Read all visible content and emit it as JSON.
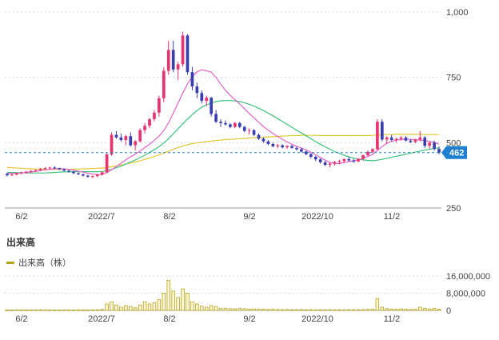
{
  "volume_section": {
    "title": "出来高",
    "legend_label": "出来高（株）",
    "legend_color": "#b6a41b"
  },
  "chart_data": [
    {
      "type": "candlestick",
      "title": "",
      "y_ticks": [
        "1,000",
        "750",
        "500",
        "250"
      ],
      "ylim": [
        250,
        1000
      ],
      "x_ticks": [
        "6/2",
        "2022/7",
        "8/2",
        "9/2",
        "2022/10",
        "11/2"
      ],
      "last_price_label": "462",
      "last_price": 462,
      "grid": true,
      "colors": {
        "up": "#e8336d",
        "down": "#3a3fb0",
        "ma_short": "#e064c8",
        "ma_mid": "#3cc47c",
        "ma_long": "#e6c832",
        "last_price": "#1f7fd1"
      },
      "candles": [
        [
          381,
          384,
          371,
          375
        ],
        [
          375,
          381,
          372,
          378
        ],
        [
          378,
          385,
          374,
          383
        ],
        [
          383,
          389,
          378,
          386
        ],
        [
          386,
          392,
          381,
          389
        ],
        [
          389,
          395,
          384,
          392
        ],
        [
          392,
          398,
          388,
          395
        ],
        [
          395,
          403,
          391,
          400
        ],
        [
          400,
          406,
          396,
          403
        ],
        [
          403,
          408,
          398,
          405
        ],
        [
          405,
          410,
          399,
          402
        ],
        [
          402,
          405,
          395,
          398
        ],
        [
          398,
          401,
          390,
          393
        ],
        [
          393,
          396,
          386,
          389
        ],
        [
          389,
          392,
          380,
          383
        ],
        [
          383,
          386,
          376,
          379
        ],
        [
          379,
          382,
          370,
          374
        ],
        [
          374,
          377,
          366,
          370
        ],
        [
          370,
          375,
          364,
          372
        ],
        [
          372,
          380,
          368,
          378
        ],
        [
          378,
          390,
          374,
          387
        ],
        [
          387,
          460,
          384,
          455
        ],
        [
          455,
          540,
          450,
          530
        ],
        [
          530,
          545,
          515,
          520
        ],
        [
          520,
          535,
          505,
          510
        ],
        [
          510,
          530,
          490,
          525
        ],
        [
          525,
          540,
          485,
          490
        ],
        [
          490,
          510,
          470,
          505
        ],
        [
          505,
          555,
          500,
          548
        ],
        [
          548,
          575,
          535,
          565
        ],
        [
          565,
          595,
          555,
          590
        ],
        [
          590,
          625,
          580,
          615
        ],
        [
          615,
          680,
          600,
          670
        ],
        [
          670,
          790,
          655,
          775
        ],
        [
          775,
          890,
          760,
          855
        ],
        [
          855,
          890,
          770,
          780
        ],
        [
          780,
          810,
          740,
          800
        ],
        [
          800,
          925,
          790,
          910
        ],
        [
          910,
          915,
          760,
          770
        ],
        [
          770,
          790,
          700,
          715
        ],
        [
          715,
          730,
          670,
          690
        ],
        [
          690,
          700,
          650,
          660
        ],
        [
          660,
          680,
          640,
          672
        ],
        [
          672,
          675,
          600,
          610
        ],
        [
          610,
          625,
          575,
          580
        ],
        [
          580,
          590,
          560,
          575
        ],
        [
          575,
          585,
          565,
          570
        ],
        [
          570,
          575,
          555,
          560
        ],
        [
          560,
          580,
          555,
          575
        ],
        [
          575,
          580,
          555,
          560
        ],
        [
          560,
          565,
          540,
          545
        ],
        [
          545,
          555,
          530,
          548
        ],
        [
          548,
          552,
          525,
          530
        ],
        [
          530,
          535,
          510,
          515
        ],
        [
          515,
          520,
          500,
          505
        ],
        [
          505,
          510,
          490,
          495
        ],
        [
          495,
          500,
          482,
          486
        ],
        [
          486,
          495,
          478,
          490
        ],
        [
          490,
          494,
          478,
          482
        ],
        [
          482,
          490,
          476,
          487
        ],
        [
          487,
          492,
          476,
          480
        ],
        [
          480,
          485,
          470,
          475
        ],
        [
          475,
          480,
          462,
          466
        ],
        [
          466,
          470,
          452,
          456
        ],
        [
          456,
          460,
          440,
          446
        ],
        [
          446,
          450,
          430,
          436
        ],
        [
          436,
          440,
          420,
          425
        ],
        [
          425,
          430,
          410,
          415
        ],
        [
          415,
          425,
          406,
          420
        ],
        [
          420,
          430,
          412,
          426
        ],
        [
          426,
          435,
          418,
          430
        ],
        [
          430,
          440,
          422,
          437
        ],
        [
          437,
          445,
          428,
          432
        ],
        [
          432,
          438,
          422,
          428
        ],
        [
          428,
          440,
          425,
          438
        ],
        [
          438,
          455,
          432,
          452
        ],
        [
          452,
          470,
          448,
          465
        ],
        [
          465,
          480,
          458,
          475
        ],
        [
          475,
          590,
          470,
          580
        ],
        [
          580,
          590,
          505,
          512
        ],
        [
          512,
          525,
          495,
          520
        ],
        [
          520,
          530,
          505,
          510
        ],
        [
          510,
          518,
          500,
          515
        ],
        [
          515,
          525,
          508,
          520
        ],
        [
          520,
          525,
          505,
          508
        ],
        [
          508,
          512,
          498,
          503
        ],
        [
          503,
          515,
          498,
          512
        ],
        [
          512,
          545,
          505,
          520
        ],
        [
          520,
          525,
          480,
          488
        ],
        [
          488,
          505,
          475,
          500
        ],
        [
          500,
          508,
          470,
          476
        ],
        [
          476,
          485,
          455,
          462
        ]
      ],
      "moving_averages": {
        "short": [
          383,
          383,
          383,
          384,
          386,
          388,
          390,
          393,
          396,
          398,
          400,
          401,
          400,
          398,
          395,
          391,
          387,
          383,
          380,
          378,
          378,
          385,
          396,
          409,
          421,
          434,
          446,
          456,
          468,
          481,
          494,
          509,
          525,
          546,
          576,
          613,
          652,
          690,
          725,
          752,
          771,
          779,
          775,
          770,
          750,
          724,
          700,
          681,
          665,
          648,
          630,
          612,
          595,
          578,
          562,
          548,
          535,
          524,
          513,
          503,
          494,
          486,
          480,
          472,
          463,
          454,
          443,
          433,
          425,
          420,
          420,
          424,
          428,
          431,
          434,
          440,
          447,
          455,
          470,
          485,
          498,
          505,
          510,
          512,
          513,
          513,
          511,
          510,
          508,
          505,
          501,
          494
        ],
        "mid": [
          386,
          386,
          385,
          385,
          384,
          384,
          384,
          384,
          384,
          385,
          386,
          387,
          388,
          388,
          389,
          389,
          389,
          389,
          389,
          389,
          390,
          393,
          398,
          404,
          410,
          418,
          426,
          434,
          443,
          452,
          462,
          473,
          485,
          499,
          515,
          534,
          553,
          572,
          590,
          607,
          623,
          636,
          645,
          652,
          657,
          660,
          661,
          661,
          660,
          657,
          653,
          647,
          640,
          632,
          623,
          613,
          603,
          592,
          581,
          570,
          559,
          548,
          537,
          526,
          515,
          504,
          494,
          484,
          475,
          466,
          459,
          452,
          446,
          441,
          437,
          434,
          432,
          431,
          433,
          436,
          440,
          444,
          448,
          452,
          456,
          460,
          464,
          468,
          472,
          475,
          478,
          480
        ],
        "long": [
          405,
          404,
          403,
          402,
          401,
          400,
          399,
          399,
          398,
          398,
          398,
          398,
          398,
          398,
          399,
          399,
          400,
          400,
          401,
          402,
          403,
          405,
          408,
          411,
          414,
          418,
          422,
          426,
          431,
          436,
          441,
          447,
          453,
          460,
          467,
          474,
          481,
          487,
          492,
          496,
          499,
          502,
          504,
          506,
          508,
          510,
          512,
          513,
          514,
          515,
          516,
          518,
          519,
          520,
          521,
          522,
          523,
          524,
          525,
          526,
          527,
          527,
          528,
          528,
          528,
          528,
          527,
          527,
          527,
          527,
          527,
          527,
          527,
          527,
          527,
          527,
          527,
          528,
          529,
          530,
          531,
          531,
          532,
          532,
          532,
          532,
          532,
          532,
          531,
          531,
          531,
          531
        ]
      }
    },
    {
      "type": "bar",
      "title": "",
      "y_ticks": [
        "16,000,000",
        "8,000,000",
        "0"
      ],
      "ylim": [
        0,
        16000000
      ],
      "x_ticks": [
        "6/2",
        "2022/7",
        "8/2",
        "9/2",
        "2022/10",
        "11/2"
      ],
      "series_color": "#b6a41b",
      "values": [
        200000,
        180000,
        260000,
        220000,
        190000,
        210000,
        240000,
        300000,
        260000,
        220000,
        200000,
        180000,
        230000,
        210000,
        190000,
        250000,
        220000,
        200000,
        240000,
        300000,
        500000,
        3000000,
        4000000,
        2500000,
        1500000,
        2200000,
        1800000,
        1200000,
        2500000,
        4000000,
        3000000,
        3500000,
        5000000,
        8000000,
        14000000,
        9000000,
        6000000,
        10000000,
        8000000,
        4000000,
        3000000,
        2000000,
        1500000,
        2200000,
        1800000,
        1000000,
        900000,
        800000,
        700000,
        900000,
        800000,
        600000,
        700000,
        500000,
        600000,
        400000,
        500000,
        400000,
        350000,
        450000,
        300000,
        350000,
        400000,
        300000,
        350000,
        250000,
        300000,
        280000,
        320000,
        260000,
        300000,
        280000,
        350000,
        300000,
        320000,
        400000,
        450000,
        500000,
        5500000,
        1500000,
        800000,
        600000,
        500000,
        700000,
        600000,
        400000,
        500000,
        1500000,
        1000000,
        700000,
        1000000,
        600000
      ]
    }
  ]
}
